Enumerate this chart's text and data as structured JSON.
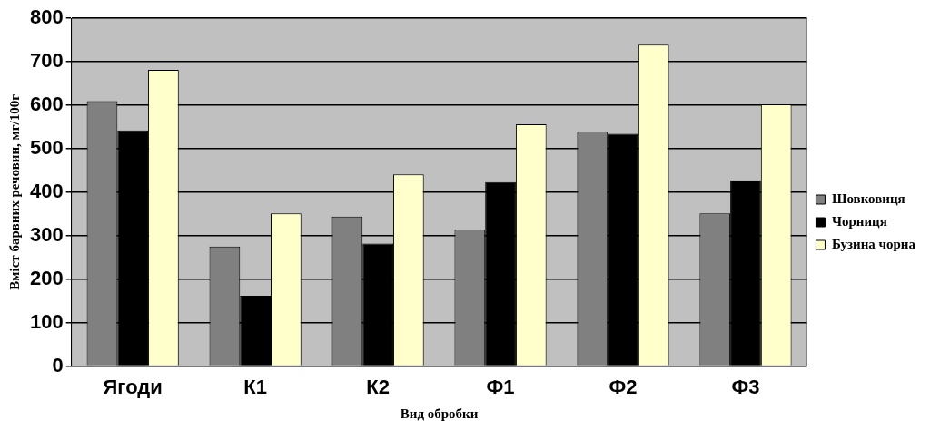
{
  "chart_data": {
    "type": "bar",
    "xlabel": "Вид обробки",
    "ylabel": "Вміст барвних речовин, мг/100г",
    "categories": [
      "Ягоди",
      "К1",
      "К2",
      "Ф1",
      "Ф2",
      "Ф3"
    ],
    "series": [
      {
        "name": "Шовковиця",
        "color": "#808080",
        "values": [
          609,
          275,
          344,
          314,
          539,
          351
        ]
      },
      {
        "name": "Чорниця",
        "color": "#000000",
        "values": [
          542,
          162,
          282,
          423,
          534,
          427
        ]
      },
      {
        "name": "Бузина чорна",
        "color": "#ffffcc",
        "values": [
          681,
          351,
          441,
          556,
          739,
          602
        ]
      }
    ],
    "ylim": [
      0,
      800
    ],
    "yticks": [
      0,
      100,
      200,
      300,
      400,
      500,
      600,
      700,
      800
    ],
    "grid": "y",
    "legend": "right"
  }
}
